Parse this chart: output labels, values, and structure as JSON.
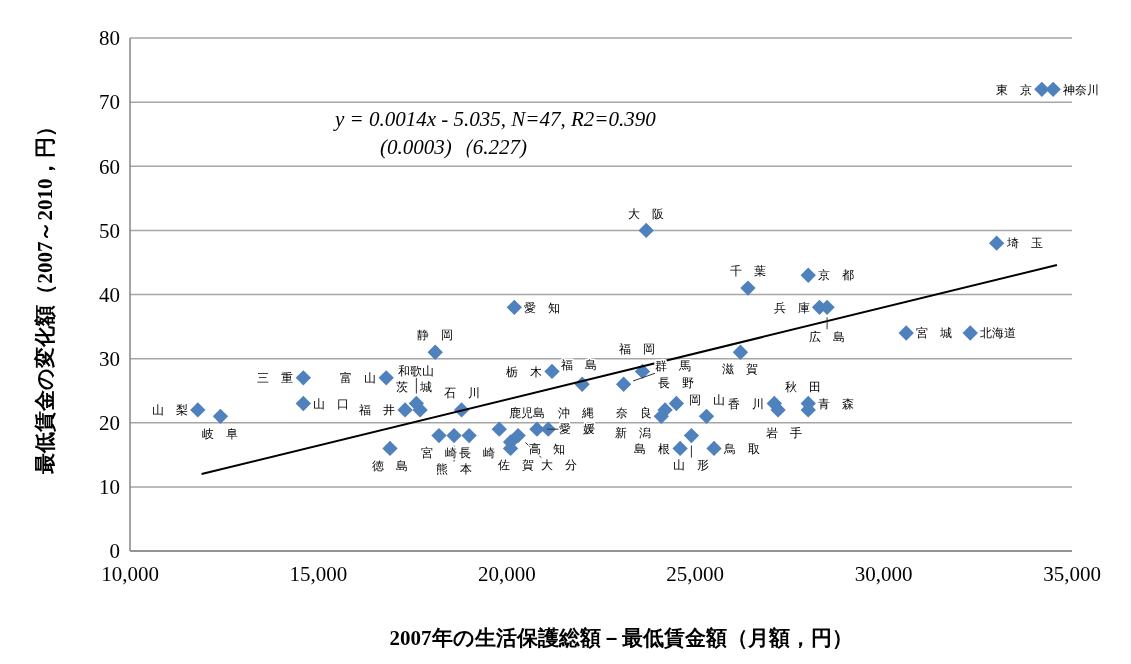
{
  "chart_data": {
    "type": "scatter",
    "xlabel": "2007年の生活保護総額－最低賃金額（月額，円）",
    "ylabel": "最低賃金の変化額（2007～2010，円）",
    "xlim": [
      10000,
      35000
    ],
    "xticks": [
      {
        "value": 10000,
        "label": "10,000"
      },
      {
        "value": 15000,
        "label": "15,000"
      },
      {
        "value": 20000,
        "label": "20,000"
      },
      {
        "value": 25000,
        "label": "25,000"
      },
      {
        "value": 30000,
        "label": "30,000"
      },
      {
        "value": 35000,
        "label": "35,000"
      }
    ],
    "ylim": [
      0,
      80
    ],
    "yticks": [
      0,
      10,
      20,
      30,
      40,
      50,
      60,
      70,
      80
    ],
    "grid": "y",
    "series": [
      {
        "color": "#4f81bd",
        "marker": "diamond",
        "x": [
          34200,
          34500,
          33000,
          32300,
          30600,
          28000,
          26400,
          28300,
          28500,
          26200,
          23700,
          20200,
          18100,
          14600,
          16800,
          11800,
          12400,
          14600,
          16900,
          21200,
          23600,
          22000,
          23100,
          24500,
          24200,
          24100,
          25300,
          24600,
          25500,
          24900,
          27100,
          27200,
          28000,
          28000,
          17600,
          17300,
          17700,
          18800,
          18200,
          18600,
          19000,
          19800,
          20100,
          20300,
          20100,
          20800,
          21100
        ],
        "values": [
          72,
          72,
          48,
          34,
          34,
          43,
          41,
          38,
          38,
          31,
          50,
          38,
          31,
          27,
          27,
          22,
          21,
          23,
          16,
          28,
          28,
          26,
          26,
          23,
          22,
          21,
          21,
          16,
          16,
          18,
          23,
          22,
          23,
          22,
          23,
          22,
          22,
          22,
          18,
          18,
          18,
          19,
          17,
          18,
          16,
          19,
          19
        ]
      },
      {
        "type": "line",
        "color": "#000000",
        "marker": "none",
        "x": [
          11900,
          34600
        ],
        "values": [
          12,
          44.6
        ]
      }
    ],
    "annotations": [
      "y = 0.0014x - 5.035, N=47, R2=0.390",
      "(0.0003)（6.227)",
      {
        "text": "東　京",
        "x": 34200,
        "y": 72
      },
      {
        "text": "神奈川",
        "x": 34500,
        "y": 72
      },
      {
        "text": "埼　玉",
        "x": 33000,
        "y": 48
      },
      {
        "text": "北海道",
        "x": 32300,
        "y": 34
      },
      {
        "text": "宮　城",
        "x": 30600,
        "y": 34
      },
      {
        "text": "京　都",
        "x": 28000,
        "y": 43
      },
      {
        "text": "千　葉",
        "x": 26400,
        "y": 41
      },
      {
        "text": "兵　庫",
        "x": 28300,
        "y": 38
      },
      {
        "text": "広　島",
        "x": 28500,
        "y": 38
      },
      {
        "text": "滋　賀",
        "x": 26200,
        "y": 31
      },
      {
        "text": "大　阪",
        "x": 23700,
        "y": 50
      },
      {
        "text": "愛　知",
        "x": 20200,
        "y": 38
      },
      {
        "text": "静　岡",
        "x": 18100,
        "y": 31
      },
      {
        "text": "三　重",
        "x": 14600,
        "y": 27
      },
      {
        "text": "富　山",
        "x": 16800,
        "y": 27
      },
      {
        "text": "山　梨",
        "x": 11800,
        "y": 22
      },
      {
        "text": "岐　阜",
        "x": 12400,
        "y": 21
      },
      {
        "text": "山　口",
        "x": 14600,
        "y": 23
      },
      {
        "text": "徳　島",
        "x": 16900,
        "y": 16
      },
      {
        "text": "栃　木",
        "x": 21200,
        "y": 28
      },
      {
        "text": "福　岡",
        "x": 23600,
        "y": 28
      },
      {
        "text": "福　島",
        "x": 22000,
        "y": 26
      },
      {
        "text": "群　馬",
        "x": 23100,
        "y": 26
      },
      {
        "text": "長　野",
        "x": 24500,
        "y": 23
      },
      {
        "text": "奈　良",
        "x": 24200,
        "y": 22
      },
      {
        "text": "新　潟",
        "x": 24100,
        "y": 21
      },
      {
        "text": "岡　山",
        "x": 25300,
        "y": 21
      },
      {
        "text": "島　根",
        "x": 24600,
        "y": 16
      },
      {
        "text": "鳥　取",
        "x": 25500,
        "y": 16
      },
      {
        "text": "山　形",
        "x": 24900,
        "y": 18
      },
      {
        "text": "香　川",
        "x": 27100,
        "y": 23
      },
      {
        "text": "岩　手",
        "x": 27200,
        "y": 22
      },
      {
        "text": "青　森",
        "x": 28000,
        "y": 23
      },
      {
        "text": "秋　田",
        "x": 28000,
        "y": 22
      },
      {
        "text": "和歌山",
        "x": 17600,
        "y": 23
      },
      {
        "text": "福　井",
        "x": 17300,
        "y": 22
      },
      {
        "text": "茨　城",
        "x": 17700,
        "y": 22
      },
      {
        "text": "石　川",
        "x": 18800,
        "y": 22
      },
      {
        "text": "宮　崎",
        "x": 18200,
        "y": 18
      },
      {
        "text": "熊　本",
        "x": 18600,
        "y": 18
      },
      {
        "text": "長　崎",
        "x": 19000,
        "y": 18
      },
      {
        "text": "鹿児島",
        "x": 19800,
        "y": 19
      },
      {
        "text": "佐　賀",
        "x": 20100,
        "y": 17
      },
      {
        "text": "大　分",
        "x": 20300,
        "y": 18
      },
      {
        "text": "高　知",
        "x": 20100,
        "y": 16
      },
      {
        "text": "愛　媛",
        "x": 20800,
        "y": 19
      },
      {
        "text": "沖　縄",
        "x": 21100,
        "y": 19
      }
    ]
  }
}
